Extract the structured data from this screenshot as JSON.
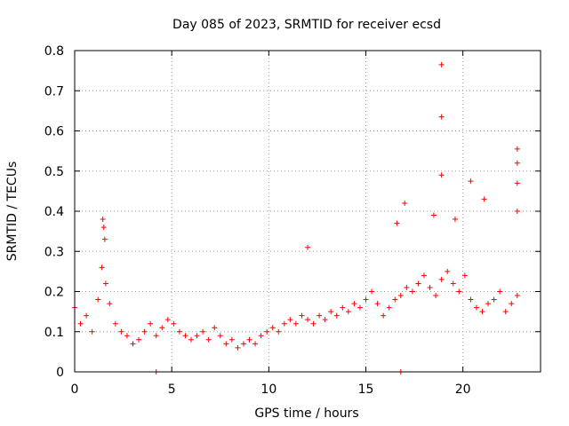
{
  "chart_data": {
    "type": "scatter",
    "title": "Day 085 of 2023, SRMTID for receiver ecsd",
    "xlabel": "GPS time / hours",
    "ylabel": "SRMTID / TECUs",
    "xlim": [
      0,
      24
    ],
    "ylim": [
      0,
      0.8
    ],
    "xticks": [
      0,
      5,
      10,
      15,
      20
    ],
    "yticks": [
      0,
      0.1,
      0.2,
      0.3,
      0.4,
      0.5,
      0.6,
      0.7,
      0.8
    ],
    "grid": true,
    "marker": "+",
    "color": "#ff0000",
    "series": [
      {
        "name": "SRMTID",
        "x": [
          0.0,
          0.3,
          0.6,
          0.9,
          1.2,
          1.4,
          1.6,
          1.8,
          2.1,
          2.4,
          2.7,
          3.0,
          3.3,
          3.6,
          3.9,
          4.2,
          4.5,
          4.8,
          5.1,
          5.4,
          5.7,
          6.0,
          6.3,
          6.6,
          6.9,
          7.2,
          7.5,
          7.8,
          8.1,
          8.4,
          8.7,
          9.0,
          9.3,
          9.6,
          9.9,
          10.2,
          10.5,
          10.8,
          11.1,
          11.4,
          11.7,
          12.0,
          12.3,
          12.6,
          12.9,
          13.2,
          13.5,
          13.8,
          14.1,
          14.4,
          14.7,
          15.0,
          15.3,
          15.6,
          15.9,
          16.2,
          16.5,
          16.8,
          17.1,
          17.4,
          17.7,
          18.0,
          18.3,
          18.6,
          18.9,
          19.2,
          19.5,
          19.8,
          20.1,
          20.4,
          20.7,
          21.0,
          21.3,
          21.6,
          21.9,
          22.2,
          22.5,
          22.8,
          1.45,
          1.5,
          1.55,
          18.9,
          18.9,
          18.9,
          20.4,
          22.8,
          22.8,
          22.8,
          22.8,
          16.6,
          17.0,
          18.5,
          19.6,
          21.1,
          12.0,
          4.2,
          16.8
        ],
        "y": [
          0.16,
          0.12,
          0.14,
          0.1,
          0.18,
          0.26,
          0.22,
          0.17,
          0.12,
          0.1,
          0.09,
          0.07,
          0.08,
          0.1,
          0.12,
          0.09,
          0.11,
          0.13,
          0.12,
          0.1,
          0.09,
          0.08,
          0.09,
          0.1,
          0.08,
          0.11,
          0.09,
          0.07,
          0.08,
          0.06,
          0.07,
          0.08,
          0.07,
          0.09,
          0.1,
          0.11,
          0.1,
          0.12,
          0.13,
          0.12,
          0.14,
          0.13,
          0.12,
          0.14,
          0.13,
          0.15,
          0.14,
          0.16,
          0.15,
          0.17,
          0.16,
          0.18,
          0.2,
          0.17,
          0.14,
          0.16,
          0.18,
          0.19,
          0.21,
          0.2,
          0.22,
          0.24,
          0.21,
          0.19,
          0.23,
          0.25,
          0.22,
          0.2,
          0.24,
          0.18,
          0.16,
          0.15,
          0.17,
          0.18,
          0.2,
          0.15,
          0.17,
          0.19,
          0.38,
          0.36,
          0.33,
          0.765,
          0.635,
          0.49,
          0.475,
          0.555,
          0.52,
          0.47,
          0.4,
          0.37,
          0.42,
          0.39,
          0.38,
          0.43,
          0.31,
          0.0,
          0.0
        ]
      }
    ]
  }
}
